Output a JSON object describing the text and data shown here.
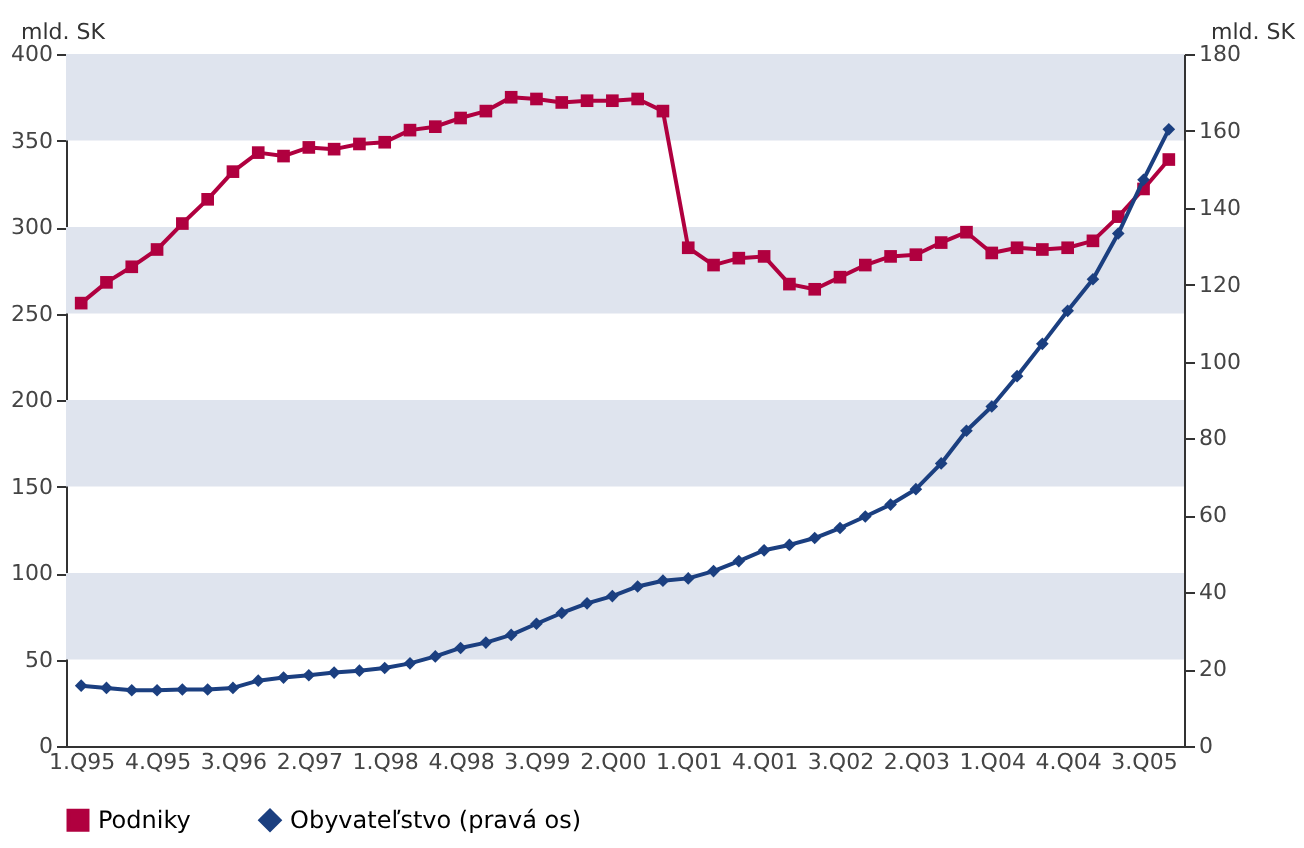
{
  "chart_data": {
    "type": "line",
    "ylabel": "mld. SK",
    "y2label": "mld. SK",
    "categories": [
      "1.Q95",
      null,
      null,
      "4.Q95",
      null,
      null,
      "3.Q96",
      null,
      null,
      "2.Q97",
      null,
      null,
      "1.Q98",
      null,
      null,
      "4.Q98",
      null,
      null,
      "3.Q99",
      null,
      null,
      "2.Q00",
      null,
      null,
      "1.Q01",
      null,
      null,
      "4.Q01",
      null,
      null,
      "3.Q02",
      null,
      null,
      "2.Q03",
      null,
      null,
      "1.Q04",
      null,
      null,
      "4.Q04",
      null,
      null,
      "3.Q05",
      null
    ],
    "series": [
      {
        "name": "Podniky",
        "color": "#b0003f",
        "marker": "square",
        "values": [
          256,
          268,
          277,
          287,
          302,
          316,
          332,
          343,
          341,
          346,
          345,
          348,
          349,
          356,
          358,
          363,
          367,
          375,
          374,
          372,
          373,
          373,
          374,
          367,
          288,
          278,
          282,
          283,
          267,
          264,
          271,
          278,
          283,
          284,
          291,
          297,
          285,
          288,
          287,
          288,
          292,
          306,
          322,
          339
        ]
      },
      {
        "name": "Obyvateľstvo (pravá os)",
        "color": "#1b3f80",
        "marker": "diamond",
        "axis": "y2",
        "values": [
          15.7,
          15.1,
          14.5,
          14.5,
          14.7,
          14.7,
          15.1,
          17.0,
          17.8,
          18.4,
          19.1,
          19.6,
          20.3,
          21.5,
          23.3,
          25.5,
          26.9,
          28.9,
          31.8,
          34.6,
          37.1,
          39.0,
          41.5,
          43.0,
          43.6,
          45.5,
          48.1,
          50.9,
          52.3,
          54.1,
          56.7,
          59.7,
          62.8,
          66.8,
          73.5,
          82.0,
          88.3,
          96.2,
          104.6,
          113.2,
          121.4,
          133.3,
          147.3,
          160.4
        ]
      }
    ],
    "ylim": [
      0,
      400
    ],
    "yticks": [
      0,
      50,
      100,
      150,
      200,
      250,
      300,
      350,
      400
    ],
    "y2lim": [
      0,
      180
    ],
    "y2ticks": [
      0,
      20,
      40,
      60,
      80,
      100,
      120,
      140,
      160,
      180
    ],
    "bands": [
      {
        "axis": "y",
        "from": 50,
        "to": 100,
        "color": "#dfe4ee"
      },
      {
        "axis": "y",
        "from": 150,
        "to": 200,
        "color": "#dfe4ee"
      },
      {
        "axis": "y",
        "from": 250,
        "to": 300,
        "color": "#dfe4ee"
      },
      {
        "axis": "y",
        "from": 350,
        "to": 400,
        "color": "#dfe4ee"
      }
    ],
    "grid": false,
    "legend": "bottom",
    "line_style": "solid"
  }
}
